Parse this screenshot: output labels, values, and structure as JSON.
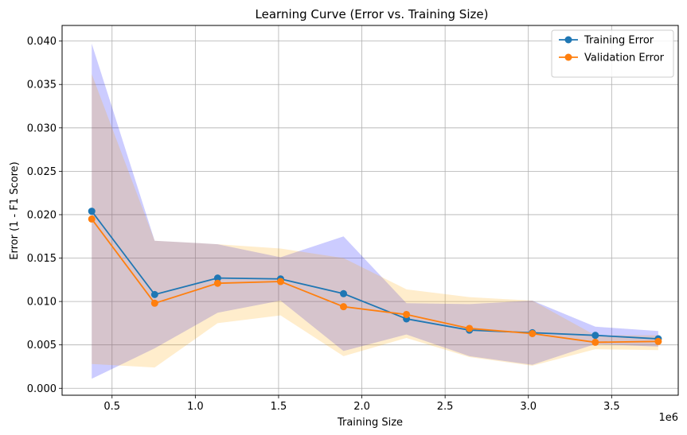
{
  "chart_data": {
    "type": "line",
    "title": "Learning Curve (Error vs. Training Size)",
    "xlabel": "Training Size",
    "ylabel": "Error (1 - F1 Score)",
    "x_offset_text": "1e6",
    "xlim": [
      0.2,
      3.9
    ],
    "ylim": [
      -0.0008,
      0.0418
    ],
    "x_ticks": [
      0.5,
      1.0,
      1.5,
      2.0,
      2.5,
      3.0,
      3.5
    ],
    "x_tick_labels": [
      "0.5",
      "1.0",
      "1.5",
      "2.0",
      "2.5",
      "3.0",
      "3.5"
    ],
    "y_ticks": [
      0.0,
      0.005,
      0.01,
      0.015,
      0.02,
      0.025,
      0.03,
      0.035,
      0.04
    ],
    "y_tick_labels": [
      "0.000",
      "0.005",
      "0.010",
      "0.015",
      "0.020",
      "0.025",
      "0.030",
      "0.035",
      "0.040"
    ],
    "grid": true,
    "legend_position": "top-right",
    "x": [
      0.378,
      0.756,
      1.134,
      1.512,
      1.89,
      2.268,
      2.646,
      3.024,
      3.402,
      3.78
    ],
    "series": [
      {
        "name": "Training Error",
        "color": "#1f77b4",
        "band_color": "#0000ff",
        "values": [
          0.0204,
          0.0108,
          0.0127,
          0.0126,
          0.0109,
          0.008,
          0.0067,
          0.0064,
          0.0061,
          0.0057
        ],
        "upper": [
          0.0397,
          0.017,
          0.0166,
          0.0151,
          0.0175,
          0.0098,
          0.0097,
          0.0101,
          0.0071,
          0.0066
        ],
        "lower": [
          0.0011,
          0.0046,
          0.0087,
          0.0101,
          0.0043,
          0.0062,
          0.0037,
          0.0027,
          0.0051,
          0.0048
        ]
      },
      {
        "name": "Validation Error",
        "color": "#ff7f0e",
        "band_color": "#ffa500",
        "values": [
          0.0195,
          0.0098,
          0.0121,
          0.0123,
          0.0094,
          0.0085,
          0.0069,
          0.0063,
          0.0053,
          0.0054
        ],
        "upper": [
          0.0362,
          0.017,
          0.0166,
          0.0161,
          0.015,
          0.0114,
          0.0105,
          0.0101,
          0.0061,
          0.0061
        ],
        "lower": [
          0.0028,
          0.0024,
          0.0075,
          0.0084,
          0.0037,
          0.0058,
          0.0036,
          0.0026,
          0.0045,
          0.0044
        ]
      }
    ]
  }
}
